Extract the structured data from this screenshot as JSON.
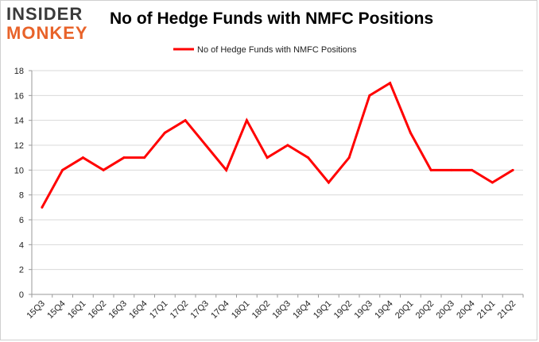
{
  "logo": {
    "line1": "INSIDER",
    "line2": "MONKEY"
  },
  "chart_data": {
    "type": "line",
    "title": "No of Hedge Funds with NMFC Positions",
    "xlabel": "",
    "ylabel": "",
    "categories": [
      "15Q3",
      "15Q4",
      "16Q1",
      "16Q2",
      "16Q3",
      "16Q4",
      "17Q1",
      "17Q2",
      "17Q3",
      "17Q4",
      "18Q1",
      "18Q2",
      "18Q3",
      "18Q4",
      "19Q1",
      "19Q2",
      "19Q3",
      "19Q4",
      "20Q1",
      "20Q2",
      "20Q3",
      "20Q4",
      "21Q1",
      "21Q2"
    ],
    "series": [
      {
        "name": "No of Hedge Funds with NMFC Positions",
        "color": "#ff0000",
        "values": [
          7,
          10,
          11,
          10,
          11,
          11,
          13,
          14,
          12,
          10,
          14,
          11,
          12,
          11,
          9,
          11,
          16,
          17,
          13,
          10,
          10,
          10,
          9,
          10
        ]
      }
    ],
    "ylim": [
      0,
      18
    ],
    "yticks": [
      0,
      2,
      4,
      6,
      8,
      10,
      12,
      14,
      16,
      18
    ],
    "grid": true,
    "legend_position": "top-center"
  }
}
